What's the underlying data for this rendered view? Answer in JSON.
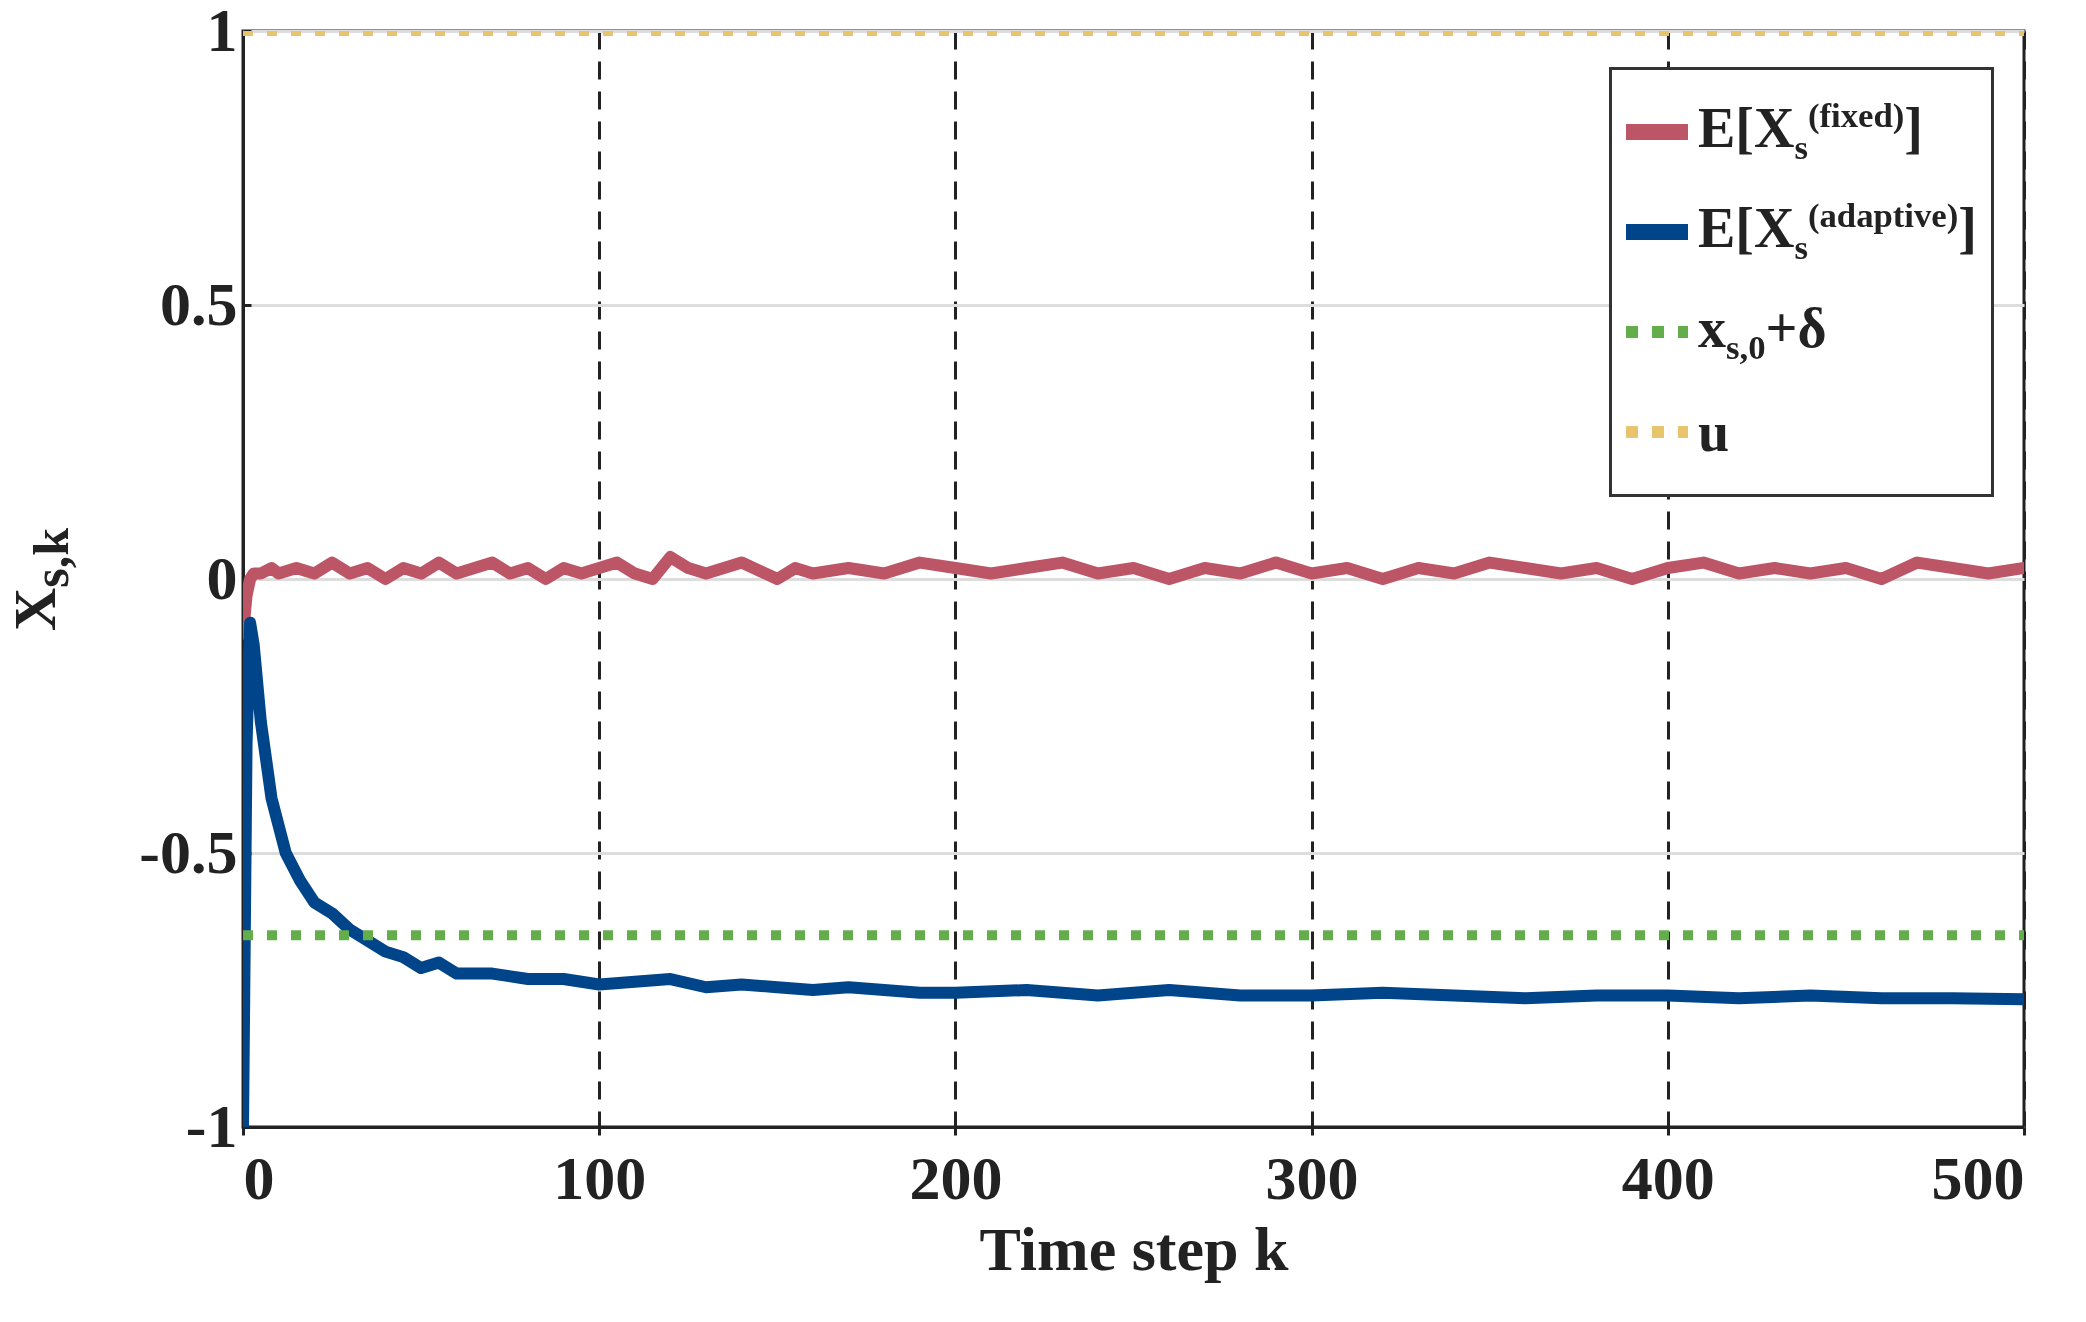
{
  "chart_data": {
    "type": "line",
    "xlabel": "Time step k",
    "ylabel": "X$_{s,k}$",
    "xlim": [
      0,
      500
    ],
    "ylim": [
      -1,
      1
    ],
    "xticks": [
      0,
      100,
      200,
      300,
      400,
      500
    ],
    "yticks": [
      -1,
      -0.5,
      0,
      0.5,
      1
    ],
    "grid": true,
    "legend": "top right",
    "line_style": "solid",
    "series": [
      {
        "name": "E[X$_{s}$$^{(fixed)}$]",
        "color": "#bc5566",
        "x": [
          0,
          1,
          2,
          3,
          5,
          8,
          10,
          15,
          20,
          25,
          30,
          35,
          40,
          45,
          50,
          55,
          60,
          65,
          70,
          75,
          80,
          85,
          90,
          95,
          100,
          105,
          110,
          115,
          120,
          125,
          130,
          140,
          150,
          155,
          160,
          170,
          180,
          190,
          200,
          210,
          220,
          230,
          240,
          250,
          260,
          270,
          280,
          290,
          300,
          310,
          320,
          330,
          340,
          350,
          360,
          370,
          380,
          390,
          400,
          410,
          420,
          430,
          440,
          450,
          460,
          470,
          480,
          490,
          500
        ],
        "values": [
          -0.1,
          -0.03,
          0.0,
          0.01,
          0.01,
          0.02,
          0.01,
          0.02,
          0.01,
          0.03,
          0.01,
          0.02,
          0.0,
          0.02,
          0.01,
          0.03,
          0.01,
          0.02,
          0.03,
          0.01,
          0.02,
          0.0,
          0.02,
          0.01,
          0.02,
          0.03,
          0.01,
          0.0,
          0.04,
          0.02,
          0.01,
          0.03,
          0.0,
          0.02,
          0.01,
          0.02,
          0.01,
          0.03,
          0.02,
          0.01,
          0.02,
          0.03,
          0.01,
          0.02,
          0.0,
          0.02,
          0.01,
          0.03,
          0.01,
          0.02,
          0.0,
          0.02,
          0.01,
          0.03,
          0.02,
          0.01,
          0.02,
          0.0,
          0.02,
          0.03,
          0.01,
          0.02,
          0.01,
          0.02,
          0.0,
          0.03,
          0.02,
          0.01,
          0.02
        ]
      },
      {
        "name": "E[X$_{s}$$^{(adaptive)}$]",
        "color": "#00458a",
        "x": [
          0,
          1,
          2,
          3,
          5,
          8,
          12,
          16,
          20,
          25,
          30,
          35,
          40,
          45,
          50,
          55,
          60,
          70,
          80,
          90,
          100,
          110,
          120,
          130,
          140,
          150,
          160,
          170,
          180,
          190,
          200,
          220,
          240,
          260,
          280,
          300,
          320,
          340,
          360,
          380,
          400,
          420,
          440,
          460,
          480,
          500
        ],
        "values": [
          -1,
          -0.3,
          -0.08,
          -0.12,
          -0.26,
          -0.4,
          -0.5,
          -0.55,
          -0.59,
          -0.61,
          -0.64,
          -0.66,
          -0.68,
          -0.69,
          -0.71,
          -0.7,
          -0.72,
          -0.72,
          -0.73,
          -0.73,
          -0.74,
          -0.735,
          -0.73,
          -0.745,
          -0.74,
          -0.745,
          -0.75,
          -0.745,
          -0.75,
          -0.755,
          -0.755,
          -0.75,
          -0.76,
          -0.75,
          -0.76,
          -0.76,
          -0.755,
          -0.76,
          -0.765,
          -0.76,
          -0.76,
          -0.765,
          -0.76,
          -0.765,
          -0.765,
          -0.767
        ]
      },
      {
        "name": "x$_{s,0}$+δ",
        "color": "#63ad4b",
        "line_style": "dotted",
        "x": [
          0,
          500
        ],
        "values": [
          -0.65,
          -0.65
        ]
      },
      {
        "name": "u",
        "color": "#e9c46f",
        "line_style": "dotted",
        "x": [
          0,
          500
        ],
        "values": [
          1,
          1
        ]
      }
    ]
  }
}
